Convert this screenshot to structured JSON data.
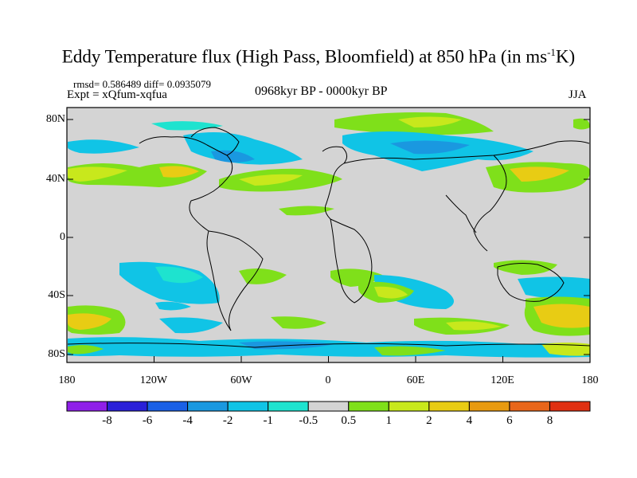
{
  "title": {
    "main": "Eddy Temperature flux (High Pass, Bloomfield) at 850 hPa (in ms",
    "sup": "-1",
    "unit": "K)"
  },
  "stats": "rmsd= 0.586489 diff= 0.0935079",
  "expt": "Expt = xQfum-xqfua",
  "period": "0968kyr BP - 0000kyr BP",
  "season": "JJA",
  "lat_labels": [
    "80N",
    "40N",
    "0",
    "40S",
    "80S"
  ],
  "lon_labels": [
    "180",
    "120W",
    "60W",
    "0",
    "60E",
    "120E",
    "180"
  ],
  "colorbar": {
    "labels": [
      "-8",
      "-6",
      "-4",
      "-2",
      "-1",
      "-0.5",
      "0.5",
      "1",
      "2",
      "4",
      "6",
      "8"
    ],
    "colors": [
      "#8f1fe8",
      "#2a20d8",
      "#1a60e6",
      "#1a98e0",
      "#10c4e6",
      "#1ee3cf",
      "#d4d4d4",
      "#7fe01a",
      "#c8e81c",
      "#e8cc14",
      "#e89a10",
      "#e8661a",
      "#e03012"
    ]
  },
  "colors": {
    "background_field": "#d4d4d4",
    "coast": "#000000"
  }
}
